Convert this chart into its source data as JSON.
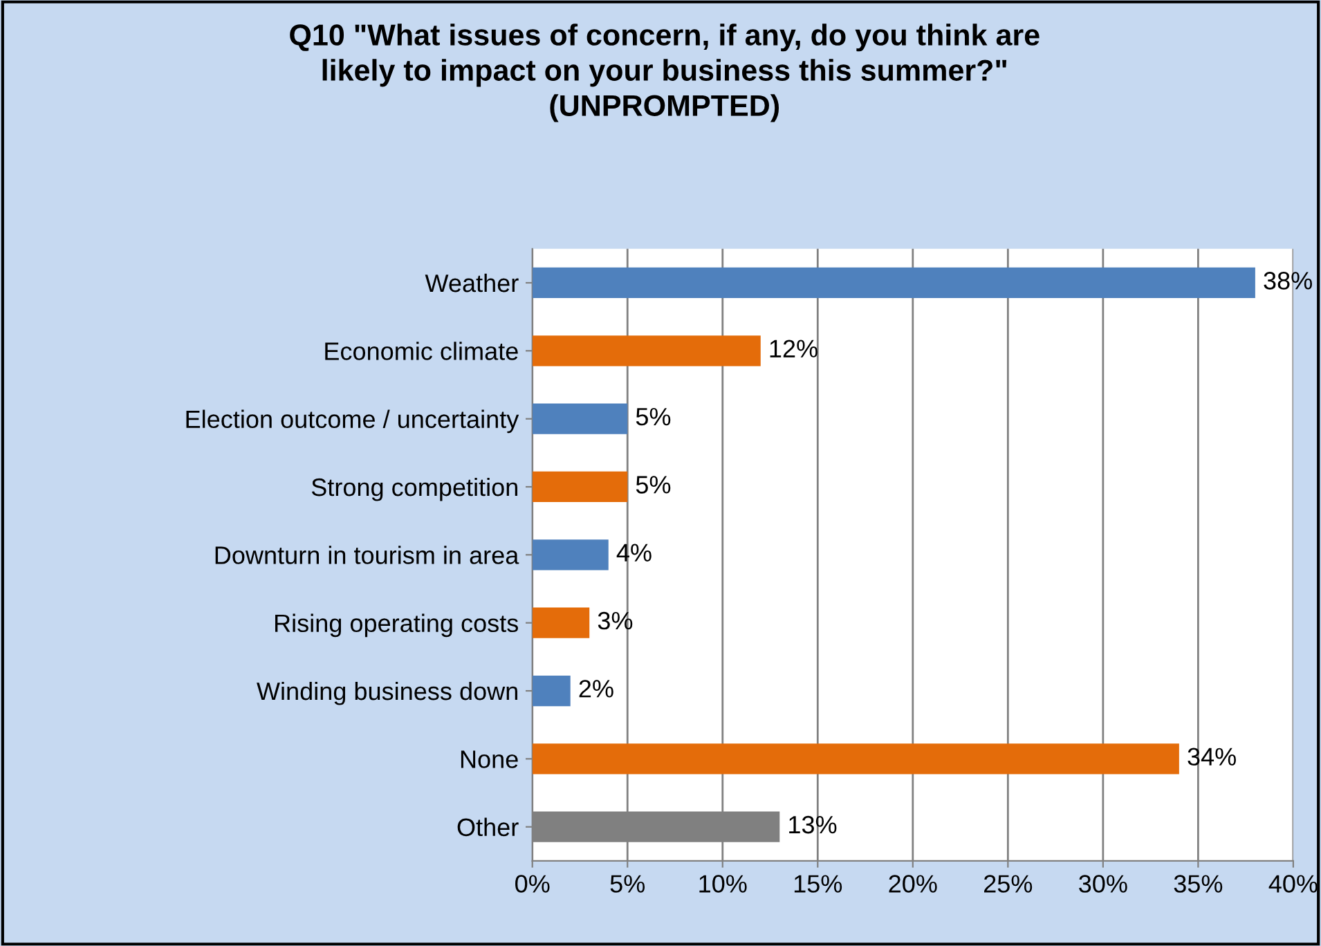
{
  "chart_data": {
    "type": "bar",
    "orientation": "horizontal",
    "title": "Q10 \"What issues of concern, if any, do you think are\nlikely to impact on your business this summer?\"\n(UNPROMPTED)",
    "categories": [
      "Weather",
      "Economic climate",
      "Election outcome / uncertainty",
      "Strong competition",
      "Downturn in tourism in area",
      "Rising operating costs",
      "Winding business down",
      "None",
      "Other"
    ],
    "values": [
      38,
      12,
      5,
      5,
      4,
      3,
      2,
      34,
      13
    ],
    "colors": [
      "#4f81bd",
      "#e46c0a",
      "#4f81bd",
      "#e46c0a",
      "#4f81bd",
      "#e46c0a",
      "#4f81bd",
      "#e46c0a",
      "#808080"
    ],
    "value_labels": [
      "38%",
      "12%",
      "5%",
      "5%",
      "4%",
      "3%",
      "2%",
      "34%",
      "13%"
    ],
    "xlim": [
      0,
      40
    ],
    "xticks": [
      {
        "value": 0,
        "label": "0%"
      },
      {
        "value": 5,
        "label": "5%"
      },
      {
        "value": 10,
        "label": "10%"
      },
      {
        "value": 15,
        "label": "15%"
      },
      {
        "value": 20,
        "label": "20%"
      },
      {
        "value": 25,
        "label": "25%"
      },
      {
        "value": 30,
        "label": "30%"
      },
      {
        "value": 35,
        "label": "35%"
      },
      {
        "value": 40,
        "label": "40%"
      }
    ],
    "grid": "x"
  }
}
